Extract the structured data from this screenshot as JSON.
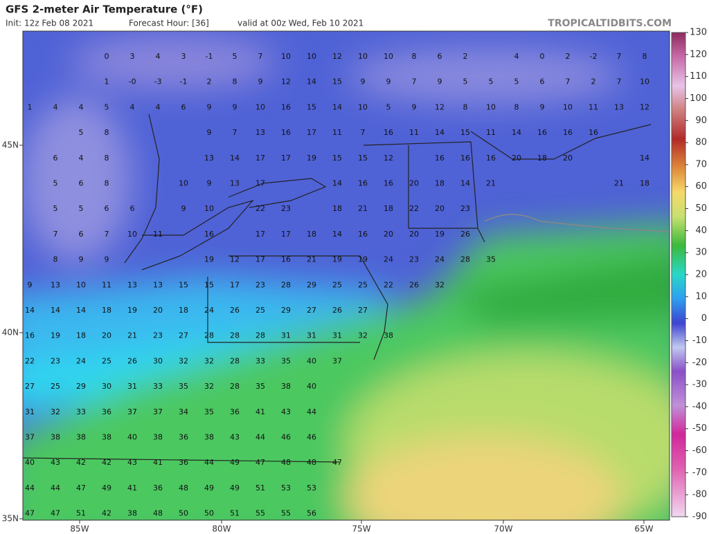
{
  "header": {
    "title": "GFS 2-meter Air Temperature (°F)",
    "init": "Init: 12z Feb 08 2021",
    "forecast_hour": "Forecast Hour: [36]",
    "valid": "valid at 00z Wed, Feb 10 2021",
    "brand": "TROPICALTIDBITS.COM"
  },
  "map": {
    "lon_labels": [
      "85W",
      "80W",
      "75W",
      "70W",
      "65W"
    ],
    "lat_labels": [
      "45N",
      "40N",
      "35N"
    ],
    "station_values": [
      [
        null,
        null,
        null,
        0,
        3,
        4,
        3,
        -1,
        5,
        7,
        10,
        10,
        12,
        10,
        10,
        8,
        6,
        2,
        null,
        4,
        0,
        2,
        -2,
        7,
        8
      ],
      [
        null,
        null,
        null,
        1,
        {
          "value": 0,
          "label": "-0"
        },
        -3,
        -1,
        2,
        8,
        9,
        12,
        14,
        15,
        9,
        9,
        7,
        9,
        5,
        5,
        5,
        6,
        7,
        2,
        7,
        10
      ],
      [
        1,
        4,
        4,
        5,
        4,
        4,
        6,
        9,
        9,
        10,
        16,
        15,
        14,
        10,
        5,
        9,
        12,
        8,
        10,
        8,
        9,
        10,
        11,
        13,
        12
      ],
      [
        null,
        null,
        5,
        8,
        null,
        null,
        null,
        9,
        7,
        13,
        16,
        17,
        11,
        7,
        16,
        11,
        14,
        15,
        11,
        14,
        16,
        16,
        16,
        null,
        null
      ],
      [
        null,
        6,
        4,
        8,
        null,
        null,
        null,
        13,
        14,
        17,
        17,
        19,
        15,
        15,
        12,
        null,
        16,
        16,
        16,
        20,
        18,
        20,
        null,
        null,
        14
      ],
      [
        null,
        5,
        6,
        8,
        null,
        null,
        10,
        9,
        13,
        17,
        null,
        null,
        14,
        16,
        16,
        20,
        18,
        14,
        21,
        null,
        null,
        null,
        null,
        21,
        18
      ],
      [
        null,
        5,
        5,
        6,
        6,
        null,
        9,
        10,
        null,
        22,
        23,
        null,
        18,
        21,
        18,
        22,
        20,
        23
      ],
      [
        null,
        7,
        6,
        7,
        10,
        11,
        null,
        16,
        null,
        17,
        17,
        18,
        14,
        16,
        20,
        20,
        19,
        26
      ],
      [
        null,
        8,
        9,
        9,
        null,
        null,
        null,
        19,
        12,
        17,
        16,
        21,
        19,
        19,
        24,
        23,
        24,
        28,
        35
      ],
      [
        9,
        13,
        10,
        11,
        13,
        13,
        15,
        15,
        17,
        23,
        28,
        29,
        25,
        25,
        22,
        26,
        32
      ],
      [
        14,
        14,
        14,
        18,
        19,
        20,
        18,
        24,
        26,
        25,
        29,
        27,
        26,
        27
      ],
      [
        16,
        19,
        18,
        20,
        21,
        23,
        27,
        28,
        28,
        28,
        31,
        31,
        31,
        32,
        38
      ],
      [
        22,
        23,
        24,
        25,
        26,
        30,
        32,
        32,
        28,
        33,
        35,
        40,
        37
      ],
      [
        27,
        25,
        29,
        30,
        31,
        33,
        35,
        32,
        28,
        35,
        38,
        40
      ],
      [
        31,
        32,
        33,
        36,
        37,
        37,
        34,
        35,
        36,
        41,
        43,
        44
      ],
      [
        37,
        38,
        38,
        38,
        40,
        38,
        36,
        38,
        43,
        44,
        46,
        46
      ],
      [
        40,
        43,
        42,
        42,
        43,
        41,
        36,
        44,
        49,
        47,
        48,
        48,
        47
      ],
      [
        44,
        44,
        47,
        49,
        41,
        36,
        48,
        49,
        49,
        51,
        53,
        53
      ],
      [
        47,
        47,
        51,
        42,
        38,
        48,
        50,
        50,
        51,
        55,
        55,
        56
      ]
    ]
  },
  "colorbar": {
    "ticks": [
      130,
      120,
      110,
      100,
      90,
      80,
      70,
      60,
      50,
      40,
      30,
      20,
      10,
      0,
      -10,
      -20,
      -30,
      -40,
      -50,
      -60,
      -70,
      -80,
      -90
    ]
  }
}
